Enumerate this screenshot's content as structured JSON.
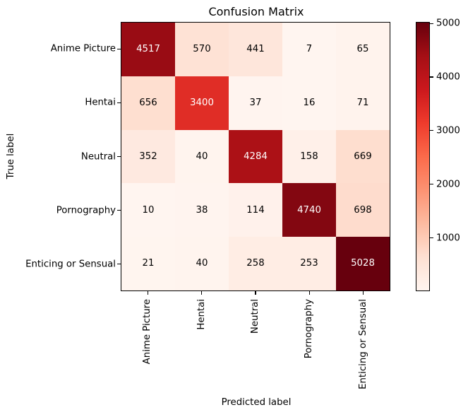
{
  "chart_data": {
    "type": "heatmap",
    "title": "Confusion Matrix",
    "xlabel": "Predicted label",
    "ylabel": "True label",
    "x_categories": [
      "Anime Picture",
      "Hentai",
      "Neutral",
      "Pornography",
      "Enticing or Sensual"
    ],
    "y_categories": [
      "Anime Picture",
      "Hentai",
      "Neutral",
      "Pornography",
      "Enticing or Sensual"
    ],
    "matrix": [
      [
        4517,
        570,
        441,
        7,
        65
      ],
      [
        656,
        3400,
        37,
        16,
        71
      ],
      [
        352,
        40,
        4284,
        158,
        669
      ],
      [
        10,
        38,
        114,
        4740,
        698
      ],
      [
        21,
        40,
        258,
        253,
        5028
      ]
    ],
    "vmin": 7,
    "vmax": 5028,
    "text_threshold": 2517.5,
    "grid": false,
    "legend": "none",
    "colormap": {
      "name": "Reds",
      "stops": [
        "#fff5f0",
        "#fee0d2",
        "#fcbba1",
        "#fc9272",
        "#fb6a4a",
        "#ef3b2c",
        "#cb181d",
        "#a50f15",
        "#67000d"
      ]
    },
    "colorbar": {
      "position": "right",
      "ticks": [
        1000,
        2000,
        3000,
        4000,
        5000
      ]
    },
    "cell_text_color_dark_bg": "#ffffff",
    "cell_text_color_light_bg": "#000000"
  }
}
